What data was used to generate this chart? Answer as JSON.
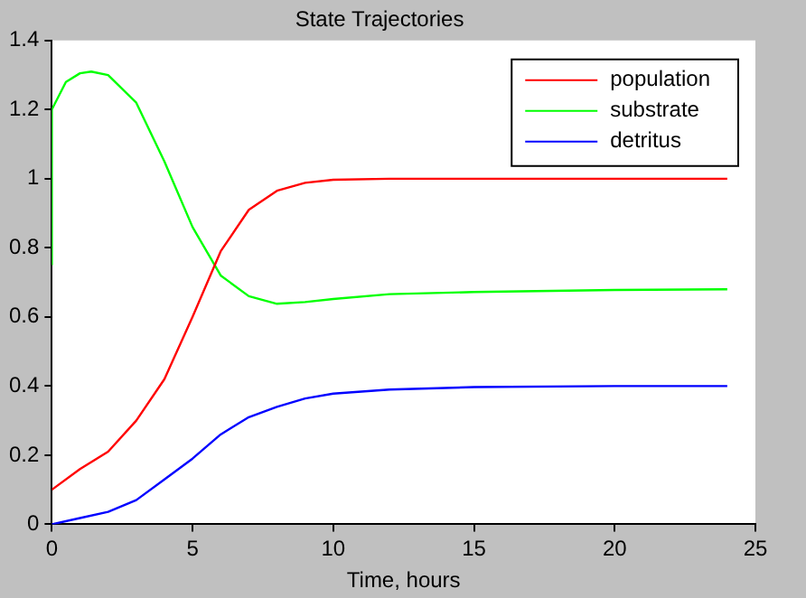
{
  "chart_data": {
    "type": "line",
    "title": "State Trajectories",
    "xlabel": "Time, hours",
    "xlim": [
      0,
      25
    ],
    "xticks": [
      0,
      5,
      10,
      15,
      20,
      25
    ],
    "ylim": [
      0,
      1.4
    ],
    "yticks": [
      0,
      0.2,
      0.4,
      0.6,
      0.8,
      1,
      1.2,
      1.4
    ],
    "legend": "top right",
    "marker": "none",
    "line_style": "solid",
    "grid": false,
    "series": [
      {
        "name": "population",
        "color": "#ff0000",
        "x": [
          0,
          1,
          2,
          3,
          4,
          5,
          6,
          7,
          8,
          9,
          10,
          12,
          15,
          20,
          24
        ],
        "values": [
          0.1,
          0.16,
          0.21,
          0.3,
          0.42,
          0.6,
          0.79,
          0.91,
          0.965,
          0.988,
          0.997,
          1,
          1,
          1,
          1
        ]
      },
      {
        "name": "substrate",
        "color": "#00ff00",
        "x": [
          0,
          0,
          0.5,
          1,
          1.4,
          2,
          3,
          4,
          5,
          6,
          7,
          8,
          9,
          10,
          12,
          15,
          20,
          24
        ],
        "values": [
          0.75,
          1.2,
          1.28,
          1.305,
          1.31,
          1.3,
          1.22,
          1.05,
          0.86,
          0.72,
          0.66,
          0.638,
          0.643,
          0.652,
          0.666,
          0.672,
          0.678,
          0.68
        ]
      },
      {
        "name": "detritus",
        "color": "#0000ff",
        "x": [
          0,
          1,
          2,
          3,
          4,
          5,
          6,
          7,
          8,
          9,
          10,
          12,
          15,
          20,
          24
        ],
        "values": [
          0,
          0.018,
          0.036,
          0.07,
          0.13,
          0.19,
          0.26,
          0.31,
          0.34,
          0.364,
          0.378,
          0.39,
          0.397,
          0.4,
          0.4
        ]
      }
    ]
  }
}
